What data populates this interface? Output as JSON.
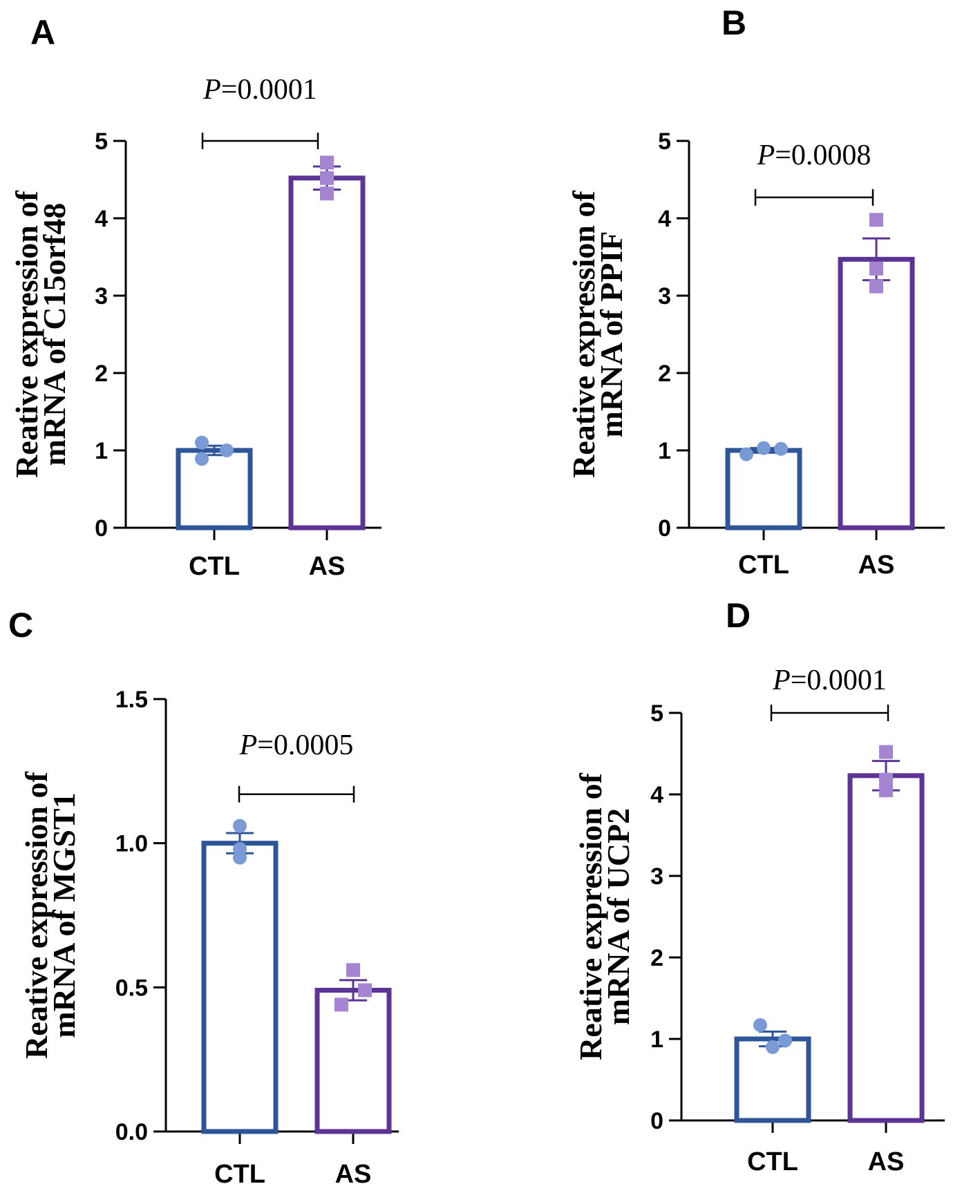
{
  "chart_data": [
    {
      "type": "bar",
      "panel": "A",
      "categories": [
        "CTL",
        "AS"
      ],
      "values": [
        1.0,
        4.52
      ],
      "errors": [
        0.06,
        0.15
      ],
      "points": [
        [
          1.1,
          0.89,
          1.0
        ],
        [
          4.72,
          4.32,
          4.52
        ]
      ],
      "colors": [
        "#2e5597",
        "#5b3496"
      ],
      "point_colors": [
        "#7a9ad6",
        "#a585d2"
      ],
      "ylabel_lines": [
        "Reative expression of",
        "mRNA of C15orf48"
      ],
      "ylim": [
        0,
        5
      ],
      "yticks": [
        0,
        1,
        2,
        3,
        4,
        5
      ],
      "ytick_labels": [
        "0",
        "1",
        "2",
        "3",
        "4",
        "5"
      ],
      "pvalue_prefix": "P",
      "pvalue_text": "=0.0001",
      "bracket_y": 5.0
    },
    {
      "type": "bar",
      "panel": "B",
      "categories": [
        "CTL",
        "AS"
      ],
      "values": [
        1.0,
        3.47
      ],
      "errors": [
        0.03,
        0.27
      ],
      "points": [
        [
          0.95,
          1.03,
          1.02
        ],
        [
          3.98,
          3.35,
          3.12
        ]
      ],
      "colors": [
        "#2e5597",
        "#5b3496"
      ],
      "point_colors": [
        "#7a9ad6",
        "#a585d2"
      ],
      "ylabel_lines": [
        "Reative expression of",
        "mRNA of PPIF"
      ],
      "ylim": [
        0,
        5
      ],
      "yticks": [
        0,
        1,
        2,
        3,
        4,
        5
      ],
      "ytick_labels": [
        "0",
        "1",
        "2",
        "3",
        "4",
        "5"
      ],
      "pvalue_prefix": "P",
      "pvalue_text": "=0.0008",
      "bracket_y": 4.27
    },
    {
      "type": "bar",
      "panel": "C",
      "categories": [
        "CTL",
        "AS"
      ],
      "values": [
        1.0,
        0.49
      ],
      "errors": [
        0.035,
        0.035
      ],
      "points": [
        [
          1.06,
          0.98,
          0.95
        ],
        [
          0.56,
          0.49,
          0.44
        ]
      ],
      "colors": [
        "#2e5597",
        "#5b3496"
      ],
      "point_colors": [
        "#7a9ad6",
        "#a585d2"
      ],
      "ylabel_lines": [
        "Reative expression of",
        "mRNA of MGST1"
      ],
      "ylim": [
        0,
        1.5
      ],
      "yticks": [
        0,
        0.5,
        1.0,
        1.5
      ],
      "ytick_labels": [
        "0.0",
        "0.5",
        "1.0",
        "1.5"
      ],
      "pvalue_prefix": "P",
      "pvalue_text": "=0.0005",
      "bracket_y": 1.17
    },
    {
      "type": "bar",
      "panel": "D",
      "categories": [
        "CTL",
        "AS"
      ],
      "values": [
        1.0,
        4.23
      ],
      "errors": [
        0.09,
        0.18
      ],
      "points": [
        [
          1.17,
          0.9,
          0.98
        ],
        [
          4.52,
          4.18,
          4.05
        ]
      ],
      "colors": [
        "#2e5597",
        "#5b3496"
      ],
      "point_colors": [
        "#7a9ad6",
        "#a585d2"
      ],
      "ylabel_lines": [
        "Reative expression of",
        "mRNA of UCP2"
      ],
      "ylim": [
        0,
        5
      ],
      "yticks": [
        0,
        1,
        2,
        3,
        4,
        5
      ],
      "ytick_labels": [
        "0",
        "1",
        "2",
        "3",
        "4",
        "5"
      ],
      "pvalue_prefix": "P",
      "pvalue_text": "=0.0001",
      "bracket_y": 5.0
    }
  ]
}
